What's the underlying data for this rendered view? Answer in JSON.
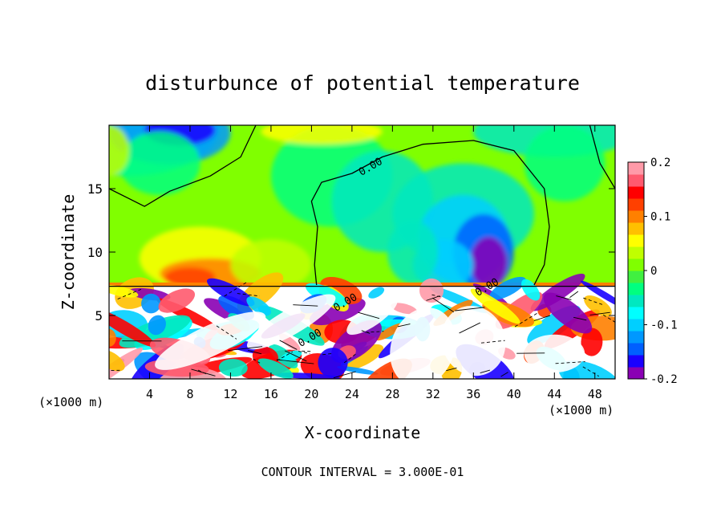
{
  "chart_data": {
    "type": "heatmap",
    "title": "disturbunce of potential temperature",
    "xlabel": "X-coordinate",
    "ylabel": "Z-coordinate",
    "x_unit_label_left": "(×1000 m)",
    "x_unit_label_right": "(×1000 m)",
    "footer": "CONTOUR INTERVAL = 3.000E-01",
    "xlim": [
      0,
      50
    ],
    "ylim": [
      0,
      20
    ],
    "x_ticks": [
      4,
      8,
      12,
      16,
      20,
      24,
      28,
      32,
      36,
      40,
      44,
      48
    ],
    "y_ticks": [
      5,
      10,
      15
    ],
    "colorbar": {
      "min": -0.2,
      "max": 0.2,
      "tick_values": [
        0.2,
        0.1,
        0,
        -0.1,
        -0.2
      ],
      "tick_labels": [
        "0.2",
        "0.1",
        "0",
        "-0.1",
        "-0.2"
      ],
      "colors": [
        "#8a00b4",
        "#1a00ff",
        "#0060ff",
        "#0098ff",
        "#00cfff",
        "#00ffff",
        "#00e8c0",
        "#00ff80",
        "#40f040",
        "#80ff00",
        "#c0ff00",
        "#ffff00",
        "#ffc000",
        "#ff8000",
        "#ff4000",
        "#ff0000",
        "#ff5a6e",
        "#ff9aa8"
      ]
    },
    "contour_labels": [
      {
        "text": "0.00",
        "x": 26,
        "y": 16.5
      },
      {
        "text": "0.00",
        "x": 37.5,
        "y": 7.0
      },
      {
        "text": "0.00",
        "x": 23.5,
        "y": 5.8
      },
      {
        "text": "0.00",
        "x": 20,
        "y": 3.0
      }
    ],
    "field_description": "upper layer z>7.3: mostly green near zero; blue minimum near top-left (x~2-8,z~18-20) and strong negative core near x~37,z~8-12; warm positive region near x~6-14,z~8-10; below z~7.3 turbulent mix of strong positive/negative values"
  }
}
